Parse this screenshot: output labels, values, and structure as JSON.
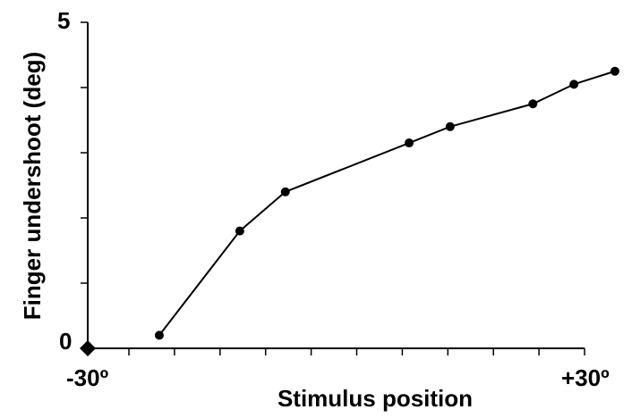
{
  "chart_data": {
    "type": "line",
    "xlabel": "Stimulus position",
    "ylabel": "Finger undershoot (deg)",
    "xlim": [
      -30,
      30
    ],
    "ylim": [
      0,
      5
    ],
    "x_tick_labels": [
      "-30º",
      "+30º"
    ],
    "y_tick_labels": [
      "0",
      "5"
    ],
    "x_minor_ticks": 11,
    "y_minor_ticks": 5,
    "grid": false,
    "series": [
      {
        "x": [
          -26,
          -15.4,
          -9.4,
          6.9,
          12.3,
          23.2,
          28.6,
          34
        ],
        "y": [
          0.2,
          1.8,
          2.4,
          3.15,
          3.4,
          3.75,
          4.05,
          4.25
        ]
      }
    ],
    "colors": {
      "line": "#000000",
      "marker": "#000000",
      "axis": "#000000"
    }
  }
}
